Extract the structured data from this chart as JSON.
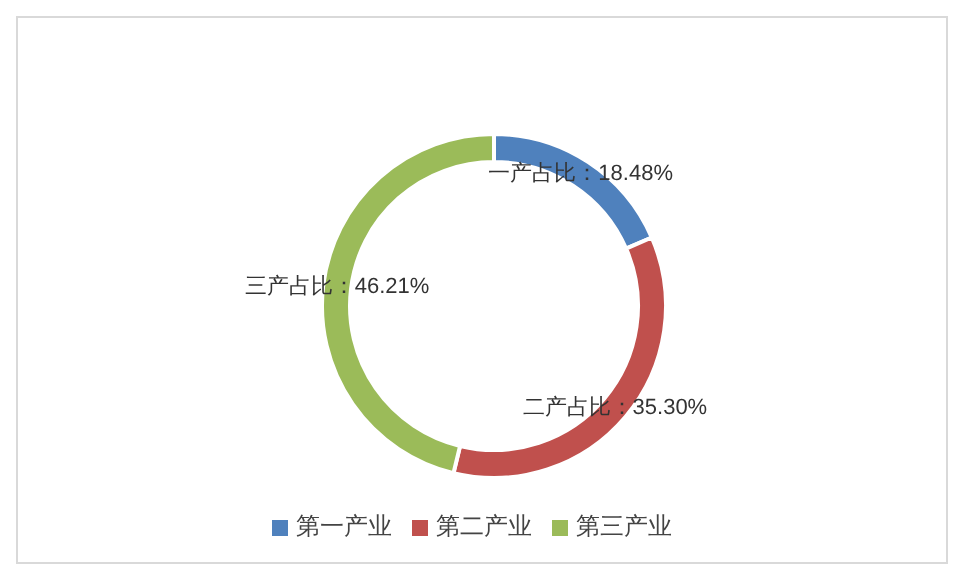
{
  "chart_data": {
    "type": "donut",
    "categories": [
      "第一产业",
      "第二产业",
      "第三产业"
    ],
    "values": [
      18.48,
      35.3,
      46.21
    ],
    "colors": [
      "#4f81bd",
      "#c0504d",
      "#9bbb59"
    ],
    "value_labels": [
      "一产占比：18.48%",
      "二产占比：35.30%",
      "三产占比：46.21%"
    ],
    "legend": "bottom"
  }
}
